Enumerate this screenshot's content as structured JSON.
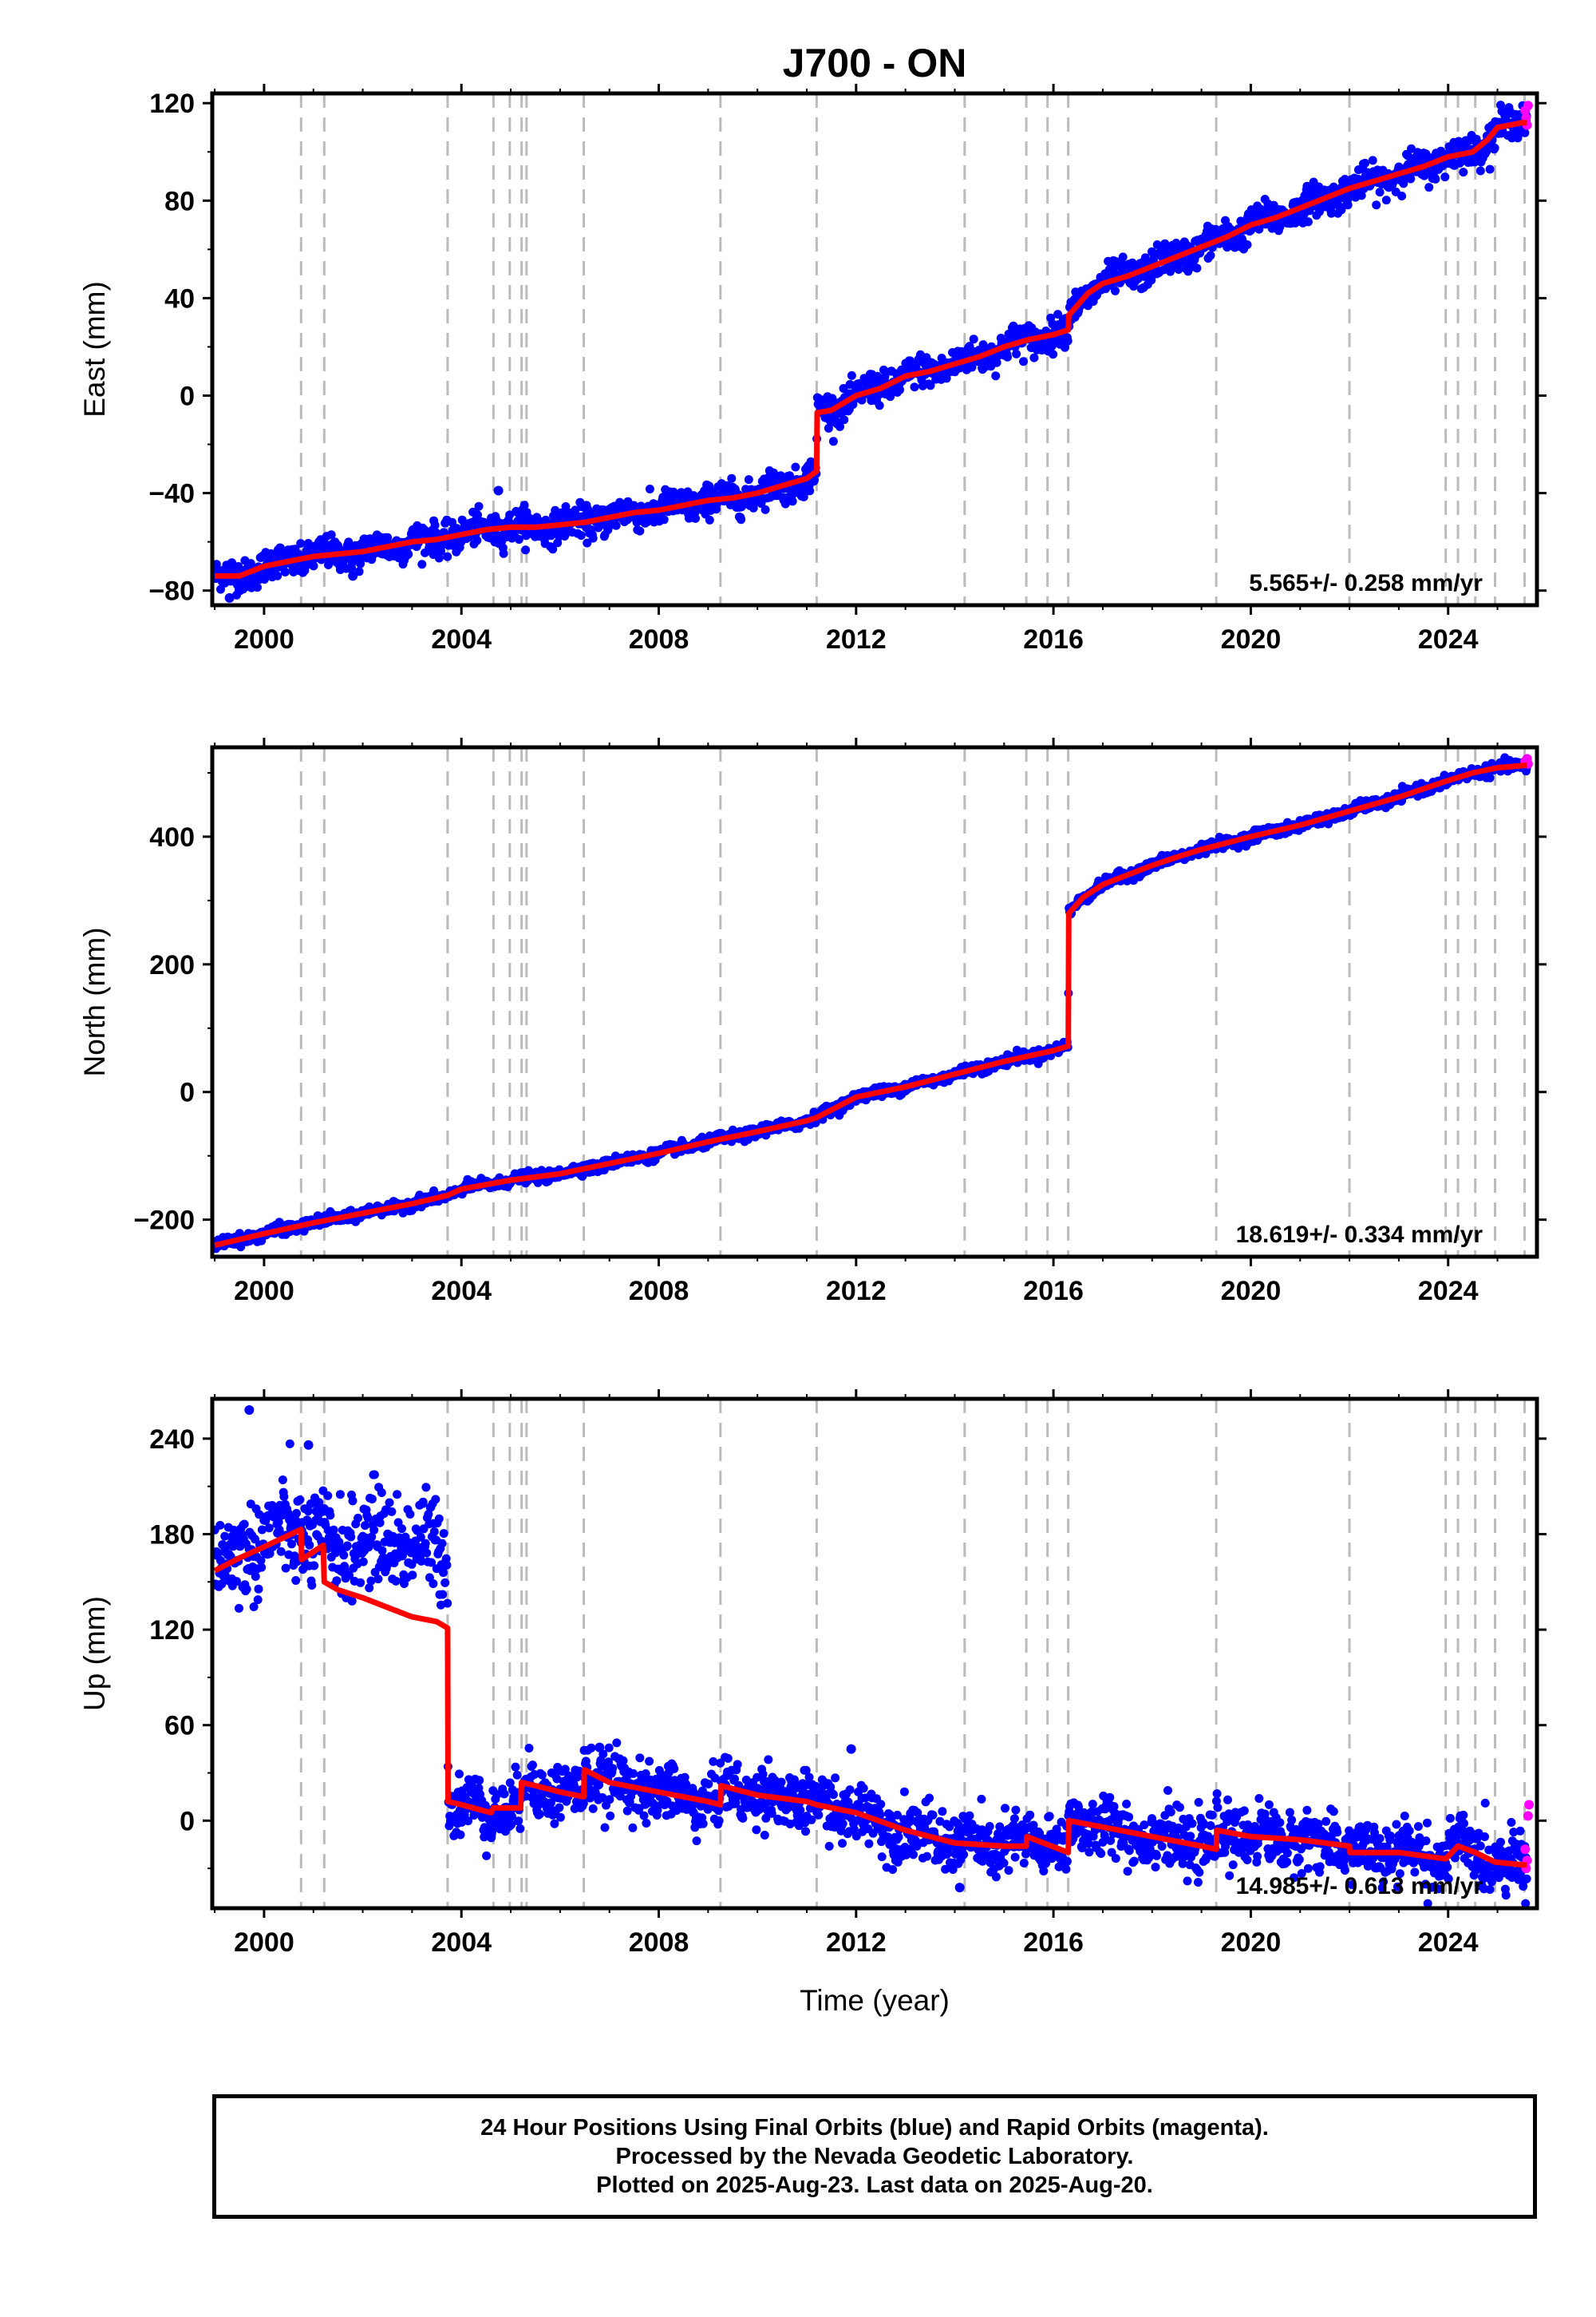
{
  "title": "J700 - ON",
  "xlabel": "Time (year)",
  "chart_data": [
    {
      "type": "scatter",
      "ylabel": "East (mm)",
      "xlim": [
        1998.95,
        2025.8
      ],
      "ylim": [
        -86,
        124
      ],
      "yticks": [
        -80,
        -40,
        0,
        40,
        80,
        120
      ],
      "xticks": [
        2000,
        2004,
        2008,
        2012,
        2016,
        2020,
        2024
      ],
      "rate_text": "5.565+/- 0.258 mm/yr",
      "events": [
        2000.75,
        2001.22,
        2003.72,
        2004.65,
        2004.98,
        2005.22,
        2005.32,
        2006.48,
        2009.25,
        2011.2,
        2014.2,
        2015.45,
        2015.88,
        2016.3,
        2019.3,
        2022.0,
        2023.95,
        2024.2,
        2024.55,
        2024.95,
        2025.55
      ],
      "trend": [
        [
          1999.0,
          -74
        ],
        [
          1999.5,
          -74
        ],
        [
          2000.0,
          -70
        ],
        [
          2000.5,
          -68
        ],
        [
          2001.0,
          -66
        ],
        [
          2001.5,
          -65
        ],
        [
          2002.0,
          -64
        ],
        [
          2002.5,
          -62
        ],
        [
          2003.0,
          -60
        ],
        [
          2003.5,
          -59
        ],
        [
          2004.0,
          -57
        ],
        [
          2004.5,
          -55
        ],
        [
          2005.0,
          -54
        ],
        [
          2005.5,
          -54
        ],
        [
          2006.0,
          -53
        ],
        [
          2006.5,
          -52
        ],
        [
          2007.0,
          -50
        ],
        [
          2007.5,
          -48
        ],
        [
          2008.0,
          -47
        ],
        [
          2008.5,
          -45
        ],
        [
          2009.0,
          -43
        ],
        [
          2009.5,
          -42
        ],
        [
          2010.0,
          -40
        ],
        [
          2010.5,
          -37
        ],
        [
          2011.0,
          -34
        ],
        [
          2011.2,
          -31
        ],
        [
          2011.21,
          -7
        ],
        [
          2011.5,
          -6
        ],
        [
          2012.0,
          0
        ],
        [
          2012.5,
          3
        ],
        [
          2013.0,
          8
        ],
        [
          2013.5,
          10
        ],
        [
          2014.0,
          13
        ],
        [
          2014.5,
          16
        ],
        [
          2015.0,
          20
        ],
        [
          2015.5,
          23
        ],
        [
          2016.0,
          25
        ],
        [
          2016.3,
          27
        ],
        [
          2016.31,
          33
        ],
        [
          2016.7,
          42
        ],
        [
          2017.0,
          46
        ],
        [
          2017.5,
          49
        ],
        [
          2018.0,
          53
        ],
        [
          2018.5,
          57
        ],
        [
          2019.0,
          61
        ],
        [
          2019.5,
          65
        ],
        [
          2020.0,
          70
        ],
        [
          2020.5,
          73
        ],
        [
          2021.0,
          77
        ],
        [
          2021.5,
          81
        ],
        [
          2022.0,
          85
        ],
        [
          2022.5,
          88
        ],
        [
          2023.0,
          91
        ],
        [
          2023.5,
          94
        ],
        [
          2024.0,
          98
        ],
        [
          2024.5,
          100
        ],
        [
          2024.8,
          105
        ],
        [
          2025.0,
          110
        ],
        [
          2025.5,
          112
        ],
        [
          2025.6,
          112
        ]
      ],
      "noise_sd": 3.2,
      "outliers": [
        [
          2004.75,
          -39
        ],
        [
          2001.8,
          -74
        ],
        [
          1999.3,
          -83
        ]
      ],
      "rapid": [
        [
          2025.56,
          117
        ],
        [
          2025.58,
          114
        ],
        [
          2025.6,
          111
        ],
        [
          2025.62,
          119
        ]
      ]
    },
    {
      "type": "scatter",
      "ylabel": "North (mm)",
      "xlim": [
        1998.95,
        2025.8
      ],
      "ylim": [
        -258,
        540
      ],
      "yticks": [
        -200,
        0,
        200,
        400
      ],
      "xticks": [
        2000,
        2004,
        2008,
        2012,
        2016,
        2020,
        2024
      ],
      "rate_text": "18.619+/- 0.334 mm/yr",
      "events": [
        2000.75,
        2001.22,
        2003.72,
        2004.65,
        2004.98,
        2005.22,
        2005.32,
        2006.48,
        2009.25,
        2011.2,
        2014.2,
        2015.45,
        2015.88,
        2016.3,
        2019.3,
        2022.0,
        2023.95,
        2024.2,
        2024.55,
        2024.95,
        2025.55
      ],
      "trend": [
        [
          1999.0,
          -240
        ],
        [
          2000.0,
          -222
        ],
        [
          2001.0,
          -205
        ],
        [
          2002.0,
          -190
        ],
        [
          2003.0,
          -175
        ],
        [
          2003.72,
          -162
        ],
        [
          2004.0,
          -152
        ],
        [
          2005.0,
          -138
        ],
        [
          2006.0,
          -128
        ],
        [
          2007.0,
          -112
        ],
        [
          2008.0,
          -96
        ],
        [
          2009.0,
          -78
        ],
        [
          2010.0,
          -62
        ],
        [
          2011.0,
          -45
        ],
        [
          2011.2,
          -40
        ],
        [
          2012.0,
          -8
        ],
        [
          2013.0,
          8
        ],
        [
          2014.0,
          28
        ],
        [
          2015.0,
          48
        ],
        [
          2016.0,
          65
        ],
        [
          2016.3,
          72
        ],
        [
          2016.31,
          280
        ],
        [
          2016.6,
          305
        ],
        [
          2017.0,
          325
        ],
        [
          2017.5,
          340
        ],
        [
          2018.0,
          355
        ],
        [
          2018.5,
          368
        ],
        [
          2019.0,
          380
        ],
        [
          2020.0,
          400
        ],
        [
          2021.0,
          418
        ],
        [
          2022.0,
          440
        ],
        [
          2023.0,
          462
        ],
        [
          2024.0,
          488
        ],
        [
          2024.5,
          500
        ],
        [
          2025.0,
          508
        ],
        [
          2025.6,
          512
        ]
      ],
      "noise_sd": 4.0,
      "outliers": [],
      "rapid": [
        [
          2025.56,
          518
        ],
        [
          2025.6,
          522
        ],
        [
          2025.62,
          514
        ]
      ]
    },
    {
      "type": "scatter",
      "ylabel": "Up (mm)",
      "xlim": [
        1998.95,
        2025.8
      ],
      "ylim": [
        -55,
        265
      ],
      "yticks": [
        0,
        60,
        120,
        180,
        240
      ],
      "xticks": [
        2000,
        2004,
        2008,
        2012,
        2016,
        2020,
        2024
      ],
      "xlabel_shown": true,
      "rate_text": "14.985+/- 0.613 mm/yr",
      "events": [
        2000.75,
        2001.22,
        2003.72,
        2004.65,
        2004.98,
        2005.22,
        2005.32,
        2006.48,
        2009.25,
        2011.2,
        2014.2,
        2015.45,
        2015.88,
        2016.3,
        2019.3,
        2022.0,
        2023.95,
        2024.2,
        2024.55,
        2024.95,
        2025.55
      ],
      "trend": [
        [
          1999.0,
          157
        ],
        [
          1999.5,
          165
        ],
        [
          2000.0,
          172
        ],
        [
          2000.75,
          183
        ],
        [
          2000.76,
          164
        ],
        [
          2001.2,
          173
        ],
        [
          2001.22,
          150
        ],
        [
          2001.5,
          145
        ],
        [
          2002.0,
          140
        ],
        [
          2002.5,
          134
        ],
        [
          2003.0,
          128
        ],
        [
          2003.5,
          125
        ],
        [
          2003.72,
          121
        ],
        [
          2003.73,
          12
        ],
        [
          2004.0,
          10
        ],
        [
          2004.6,
          5
        ],
        [
          2004.65,
          8
        ],
        [
          2005.2,
          8
        ],
        [
          2005.22,
          24
        ],
        [
          2005.5,
          22
        ],
        [
          2006.0,
          18
        ],
        [
          2006.48,
          15
        ],
        [
          2006.49,
          32
        ],
        [
          2007.0,
          24
        ],
        [
          2008.0,
          18
        ],
        [
          2009.0,
          12
        ],
        [
          2009.25,
          10
        ],
        [
          2009.26,
          22
        ],
        [
          2010.0,
          16
        ],
        [
          2011.0,
          12
        ],
        [
          2011.2,
          10
        ],
        [
          2012.0,
          5
        ],
        [
          2013.0,
          -6
        ],
        [
          2014.0,
          -14
        ],
        [
          2015.0,
          -16
        ],
        [
          2015.45,
          -16
        ],
        [
          2015.46,
          -10
        ],
        [
          2016.3,
          -20
        ],
        [
          2016.31,
          0
        ],
        [
          2017.0,
          -4
        ],
        [
          2018.0,
          -10
        ],
        [
          2019.0,
          -16
        ],
        [
          2019.3,
          -18
        ],
        [
          2019.31,
          -6
        ],
        [
          2020.0,
          -10
        ],
        [
          2021.0,
          -12
        ],
        [
          2022.0,
          -16
        ],
        [
          2022.01,
          -20
        ],
        [
          2023.0,
          -20
        ],
        [
          2023.95,
          -24
        ],
        [
          2024.2,
          -16
        ],
        [
          2024.55,
          -20
        ],
        [
          2024.95,
          -26
        ],
        [
          2025.6,
          -28
        ]
      ],
      "noise_sd": 9.0,
      "noise_sd_early": 15.0,
      "early_end": 2003.72,
      "early_offset": [
        [
          1999.0,
          157
        ],
        [
          1999.5,
          168
        ],
        [
          2000.0,
          176
        ],
        [
          2000.5,
          184
        ],
        [
          2001.0,
          176
        ],
        [
          2001.5,
          170
        ],
        [
          2002.0,
          176
        ],
        [
          2002.5,
          178
        ],
        [
          2003.0,
          174
        ],
        [
          2003.7,
          170
        ]
      ],
      "outliers": [
        [
          1999.7,
          258
        ],
        [
          2000.9,
          236
        ],
        [
          2011.9,
          45
        ],
        [
          2014.1,
          -42
        ],
        [
          2004.6,
          -10
        ],
        [
          2006.8,
          46
        ]
      ],
      "rapid": [
        [
          2025.56,
          -18
        ],
        [
          2025.6,
          -25
        ],
        [
          2025.62,
          3
        ],
        [
          2025.64,
          10
        ],
        [
          2025.58,
          -30
        ]
      ]
    }
  ],
  "footer": {
    "line1": "24 Hour Positions Using Final Orbits (blue) and Rapid Orbits (magenta).",
    "line2": "Processed by the Nevada Geodetic Laboratory.",
    "line3": "Plotted on 2025-Aug-23. Last data on 2025-Aug-20."
  },
  "colors": {
    "final": "#0000ff",
    "rapid": "#ff00ff",
    "trend": "#ff0000",
    "event": "#bbbbbb"
  }
}
